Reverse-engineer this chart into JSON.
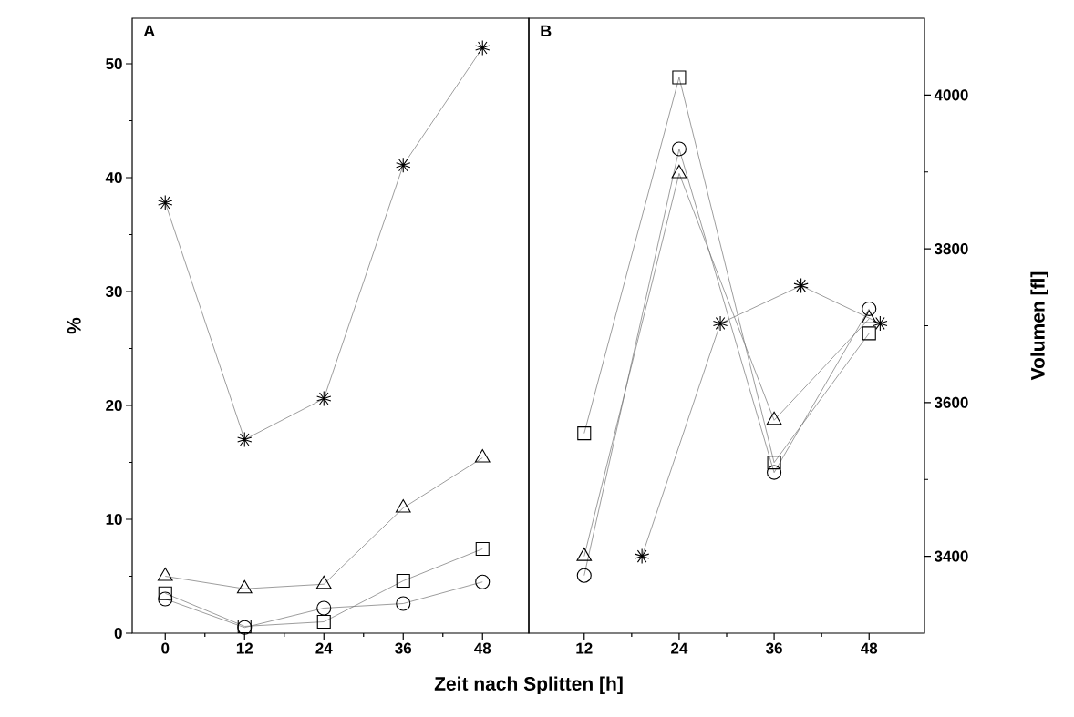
{
  "chart_data": [
    {
      "type": "line",
      "title": "A",
      "xlabel": "Zeit nach Splitten [h]",
      "ylabel": "%",
      "x": [
        0,
        12,
        24,
        36,
        48
      ],
      "xlim": [
        -5,
        55
      ],
      "xticks": [
        0,
        12,
        24,
        36,
        48
      ],
      "ylim": [
        0,
        54
      ],
      "yticks": [
        0,
        10,
        20,
        30,
        40,
        50
      ],
      "series": [
        {
          "color": "#000000",
          "marker": "cross",
          "values": [
            37.8,
            17.0,
            20.6,
            41.1,
            51.4
          ]
        },
        {
          "color": "#000000",
          "marker": "triangle",
          "values": [
            5.0,
            3.9,
            4.3,
            11.0,
            15.4
          ]
        },
        {
          "color": "#000000",
          "marker": "square",
          "values": [
            3.5,
            0.6,
            1.0,
            4.6,
            7.4
          ]
        },
        {
          "color": "#000000",
          "marker": "circle",
          "values": [
            3.0,
            0.5,
            2.2,
            2.6,
            4.5
          ]
        }
      ]
    },
    {
      "type": "line",
      "title": "B",
      "ylabel": "Volumen [fl]",
      "x": [
        12,
        24,
        36,
        48
      ],
      "xlim": [
        5,
        55
      ],
      "xticks": [
        12,
        24,
        36,
        48
      ],
      "ylim": [
        3300,
        4100
      ],
      "yticks": [
        3400,
        3600,
        3800,
        4000
      ],
      "series": [
        {
          "color": "#000000",
          "marker": "square",
          "values": [
            3560,
            4023,
            3522,
            3690
          ]
        },
        {
          "color": "#000000",
          "marker": "circle",
          "values": [
            3375,
            3930,
            3509,
            3722
          ]
        },
        {
          "color": "#000000",
          "marker": "triangle",
          "values": [
            3400,
            3898,
            3577,
            3709
          ]
        },
        {
          "color": "#000000",
          "marker": "cross",
          "x": [
            19.3,
            29.2,
            39.4,
            49.4
          ],
          "values": [
            3400,
            3703,
            3752,
            3703
          ]
        }
      ]
    }
  ]
}
